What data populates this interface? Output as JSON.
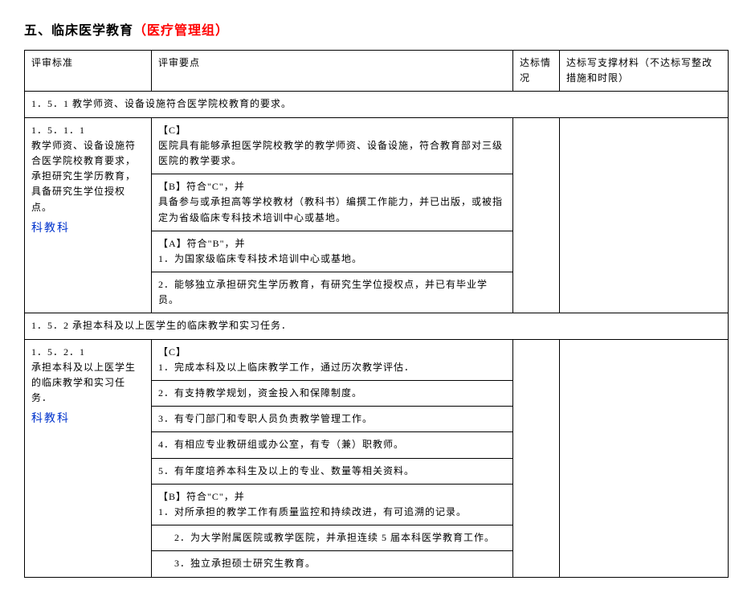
{
  "title": {
    "section_number": "五、",
    "black_part": "临床医学教育",
    "red_part": "（医疗管理组）"
  },
  "headers": {
    "standard": "评审标准",
    "point": "评审要点",
    "status": "达标情况",
    "material": "达标写支撑材料（不达标写整改措施和时限）"
  },
  "group1": {
    "header": "1．5．1 教学师资、设备设施符合医学院校教育的要求。",
    "standard_code": "1．5．1．1",
    "standard_text": "教学师资、设备设施符合医学院校教育要求，承担研究生学历教育，具备研究生学位授权点。",
    "dept": "科教科",
    "c_label": "【C】",
    "c_text": "医院具有能够承担医学院校教学的教学师资、设备设施，符合教育部对三级医院的教学要求。",
    "b_label": "【B】符合\"C\"，并",
    "b_text": "具备参与或承担高等学校教材（教科书）编撰工作能力，并已出版，或被指定为省级临床专科技术培训中心或基地。",
    "a_label": "【A】符合\"B\"，并",
    "a1_text": "1．为国家级临床专科技术培训中心或基地。",
    "a2_text": "2．能够独立承担研究生学历教育，有研究生学位授权点，并已有毕业学员。"
  },
  "group2": {
    "header": "1．5．2 承担本科及以上医学生的临床教学和实习任务．",
    "standard_code": "1．5．2．1",
    "standard_text": "承担本科及以上医学生的临床教学和实习任务．",
    "dept": "科教科",
    "c_label": "【C】",
    "c1_text": "1．完成本科及以上临床教学工作，通过历次教学评估．",
    "c2_text": "2．有支持教学规划，资金投入和保障制度。",
    "c3_text": "3．有专门部门和专职人员负责教学管理工作。",
    "c4_text": "4．有相应专业教研组或办公室，有专（兼）职教师。",
    "c5_text": "5．有年度培养本科生及以上的专业、数量等相关资料。",
    "b_label": "【B】符合\"C\"，并",
    "b1_text": "1．对所承担的教学工作有质量监控和持续改进，有可追溯的记录。",
    "b2_text": "2．为大学附属医院或教学医院，并承担连续 5 届本科医学教育工作。",
    "b3_text": "3．独立承担硕士研究生教育。"
  }
}
